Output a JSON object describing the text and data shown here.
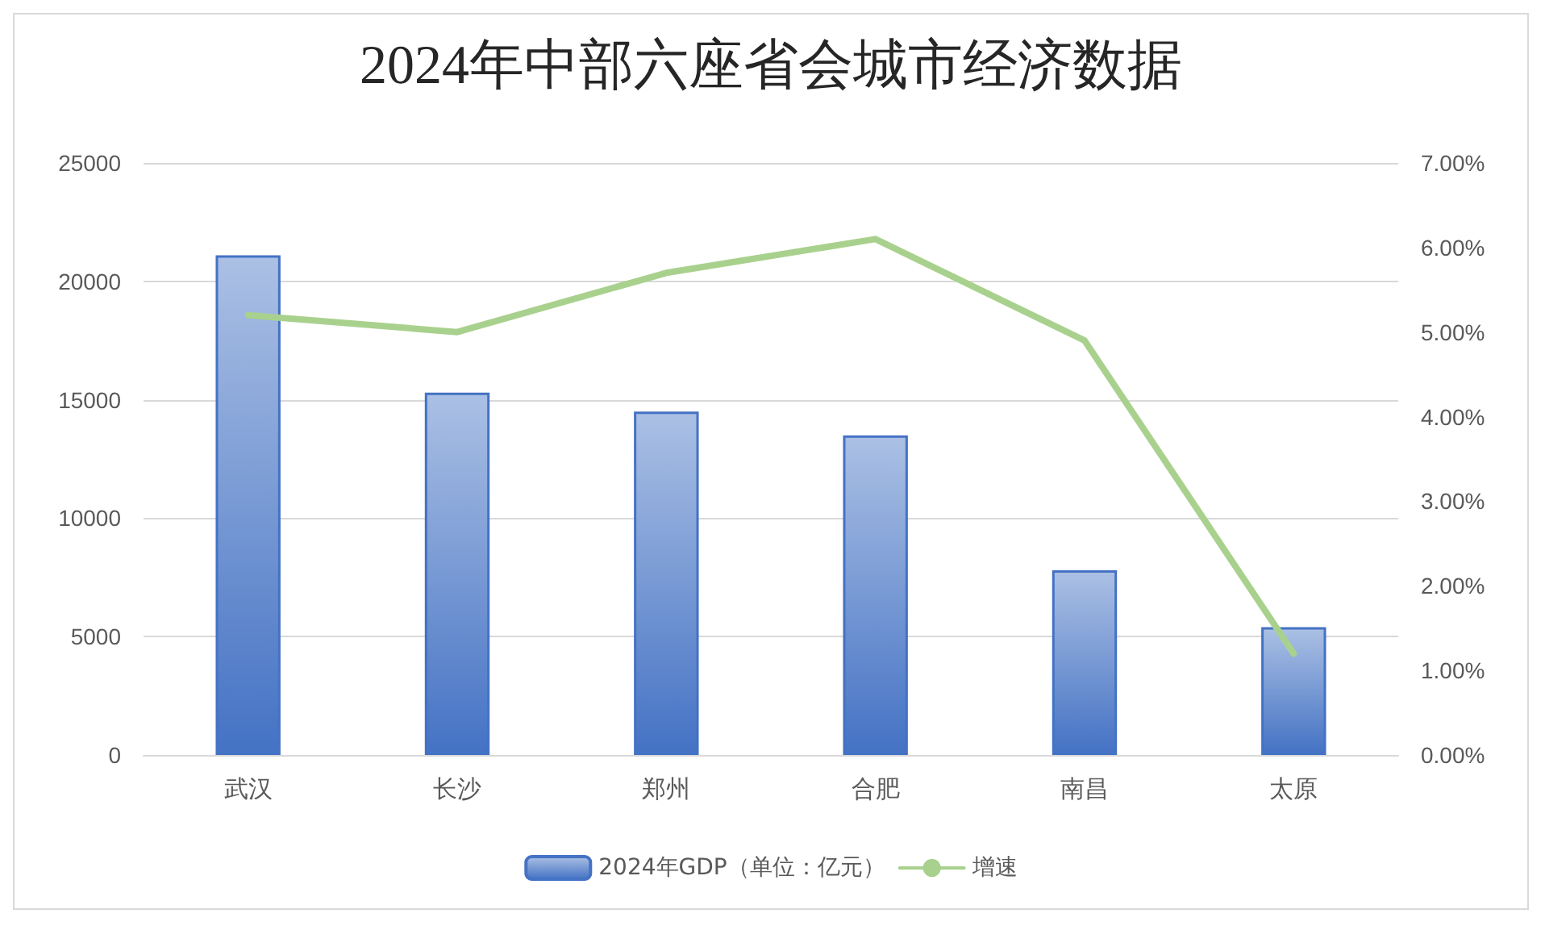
{
  "chart_data": {
    "type": "bar",
    "title": "2024年中部六座省会城市经济数据",
    "categories": [
      "武汉",
      "长沙",
      "郑州",
      "合肥",
      "南昌",
      "太原"
    ],
    "series": [
      {
        "name": "2024年GDP（单位：亿元）",
        "color": "#4472c4",
        "values": [
          21100,
          15300,
          14500,
          13500,
          7800,
          5400
        ]
      },
      {
        "name": "增速",
        "type": "line",
        "axis": "y2",
        "color": "#a9d18e",
        "values": [
          5.2,
          5.0,
          5.7,
          6.1,
          4.9,
          1.2
        ]
      }
    ],
    "ylim": [
      0,
      25000
    ],
    "yticks": [
      0,
      5000,
      10000,
      15000,
      20000,
      25000
    ],
    "y2lim": [
      0,
      7
    ],
    "y2ticks": [
      {
        "value": 0,
        "label": "0.00%"
      },
      {
        "value": 1,
        "label": "1.00%"
      },
      {
        "value": 2,
        "label": "2.00%"
      },
      {
        "value": 3,
        "label": "3.00%"
      },
      {
        "value": 4,
        "label": "4.00%"
      },
      {
        "value": 5,
        "label": "5.00%"
      },
      {
        "value": 6,
        "label": "6.00%"
      },
      {
        "value": 7,
        "label": "7.00%"
      }
    ],
    "grid": "y",
    "legend": "bottom",
    "marker": "none"
  }
}
